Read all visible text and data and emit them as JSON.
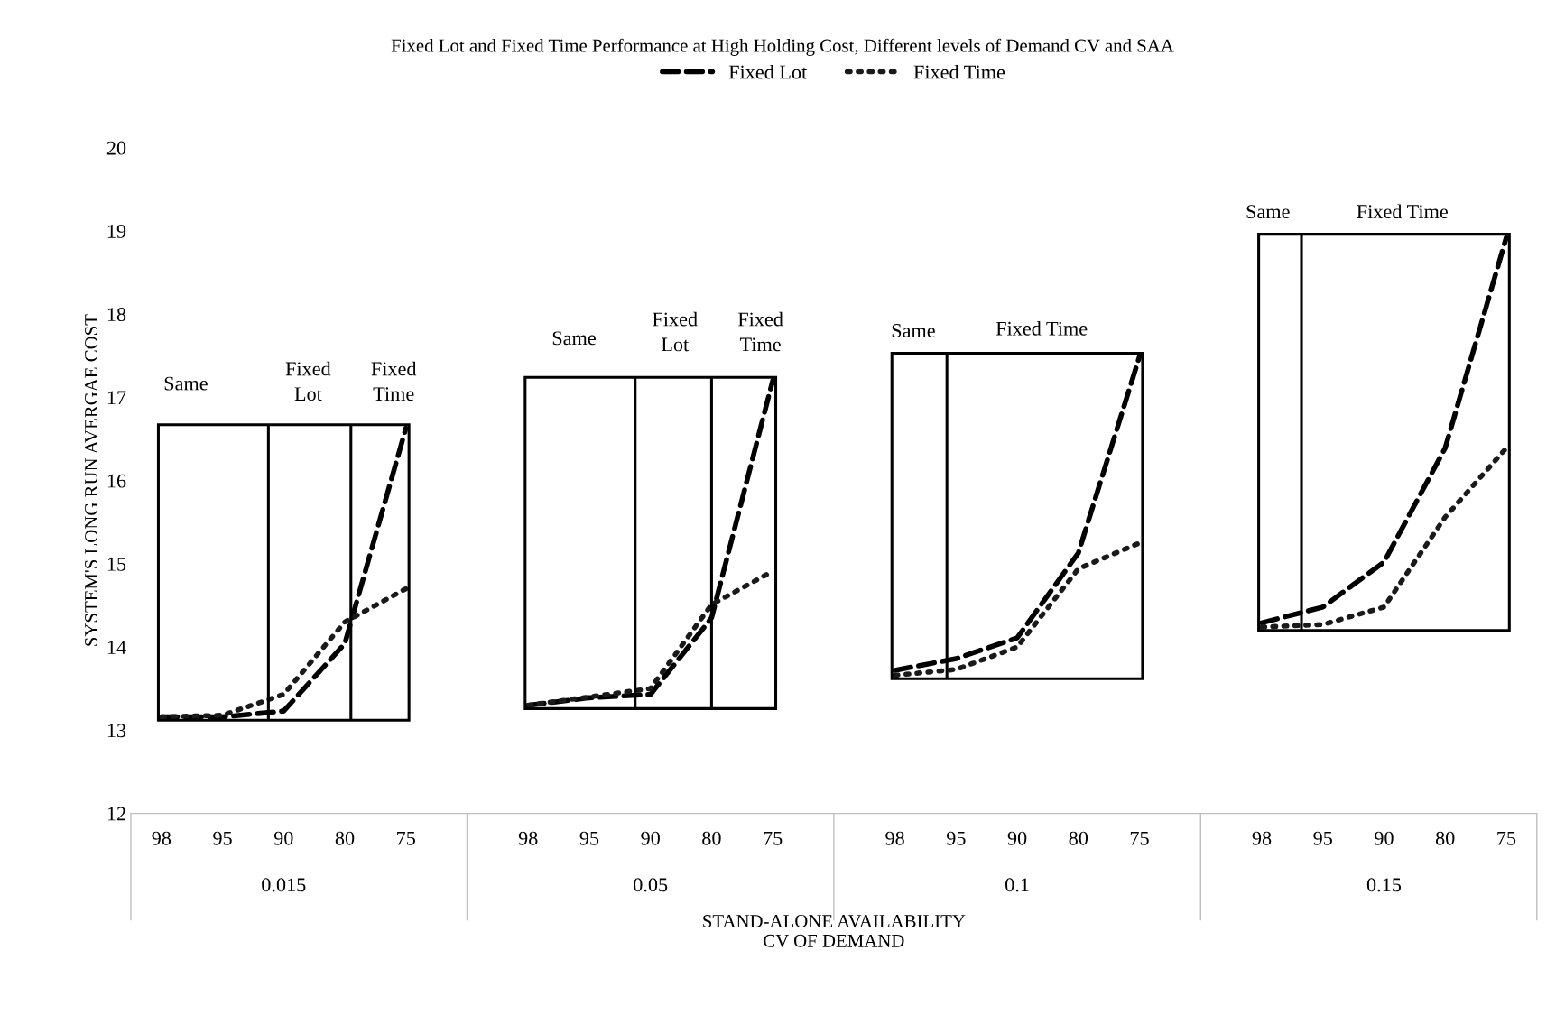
{
  "chart_data": {
    "type": "line",
    "title": "Fixed Lot and Fixed Time Performance at High Holding Cost, Different levels of Demand CV and SAA",
    "xlabel": "STAND-ALONE AVAILABILITY\nCV OF DEMAND",
    "ylabel": "SYSTEM'S LONG RUN AVERGAE COST",
    "categories": [
      "98",
      "95",
      "90",
      "80",
      "75",
      null,
      "98",
      "95",
      "90",
      "80",
      "75",
      null,
      "98",
      "95",
      "90",
      "80",
      "75",
      null,
      "98",
      "95",
      "90",
      "80",
      "75"
    ],
    "series": [
      {
        "name": "Fixed Lot",
        "color": "#000000",
        "line_style": "dashed",
        "values": [
          13.16,
          13.16,
          13.23,
          14.04,
          16.63,
          null,
          13.3,
          13.39,
          13.43,
          14.35,
          17.2,
          null,
          13.72,
          13.86,
          14.11,
          15.13,
          17.49,
          null,
          14.29,
          14.48,
          15.02,
          16.39,
          18.92
        ]
      },
      {
        "name": "Fixed Time",
        "color": "#1a1a1a",
        "line_style": "dotted",
        "values": [
          13.16,
          13.18,
          13.43,
          14.3,
          14.7,
          null,
          13.3,
          13.4,
          13.5,
          14.51,
          14.91,
          null,
          13.66,
          13.73,
          14.0,
          14.94,
          15.25,
          null,
          14.24,
          14.27,
          14.48,
          15.56,
          16.39
        ]
      }
    ],
    "ylim": [
      12,
      20
    ],
    "yticks": [
      12,
      13,
      14,
      15,
      16,
      17,
      18,
      19,
      20
    ],
    "grid": false,
    "legend": "top",
    "marker": "none",
    "annotations": [
      "Same",
      "Fixed\nLot",
      "Fixed\nTime",
      "Same",
      "Fixed\nLot",
      "Fixed\nTime",
      "Same",
      "Fixed Time",
      "Same",
      "Fixed Time",
      "0.015",
      "0.05",
      "0.1",
      "0.15"
    ]
  }
}
